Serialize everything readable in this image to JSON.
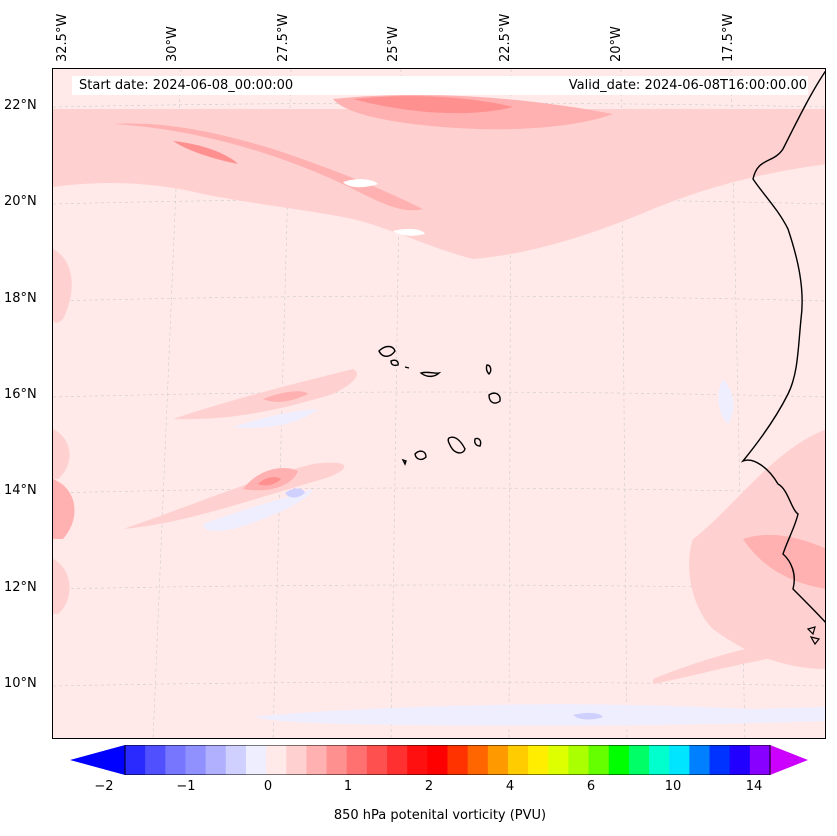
{
  "map": {
    "start_date": "Start date: 2024-06-08_00:00:00",
    "valid_date": "Valid_date: 2024-06-08T16:00:00.00",
    "lon_labels": [
      "32.5°W",
      "30°W",
      "27.5°W",
      "25°W",
      "22.5°W",
      "20°W",
      "17.5°W"
    ],
    "lat_labels": [
      "22°N",
      "20°N",
      "18°N",
      "16°N",
      "14°N",
      "12°N",
      "10°N"
    ],
    "background_color": "#ffe9e9",
    "features": [
      "Cape Verde islands",
      "West African coastline"
    ]
  },
  "colorbar": {
    "label": "850 hPa potenital vorticity (PVU)",
    "ticks": [
      "−2",
      "−1",
      "0",
      "1",
      "2",
      "4",
      "6",
      "10",
      "14"
    ],
    "colors": [
      "#0000ff",
      "#2a2aff",
      "#5050ff",
      "#7676ff",
      "#9090ff",
      "#b0b0ff",
      "#d0d0ff",
      "#eeeeff",
      "#ffe9e9",
      "#ffd0d0",
      "#ffb0b0",
      "#ff9090",
      "#ff7070",
      "#ff5050",
      "#ff3030",
      "#ff1010",
      "#ff0000",
      "#ff3300",
      "#ff6600",
      "#ff9900",
      "#ffcc00",
      "#ffee00",
      "#ddff00",
      "#aaff00",
      "#66ff00",
      "#00ff00",
      "#00ff66",
      "#00ffcc",
      "#00e5ff",
      "#0080ff",
      "#0033ff",
      "#2200ff",
      "#8800ff",
      "#cc00ff"
    ],
    "low_extend_color": "#0000ff",
    "high_extend_color": "#cc00ff"
  }
}
